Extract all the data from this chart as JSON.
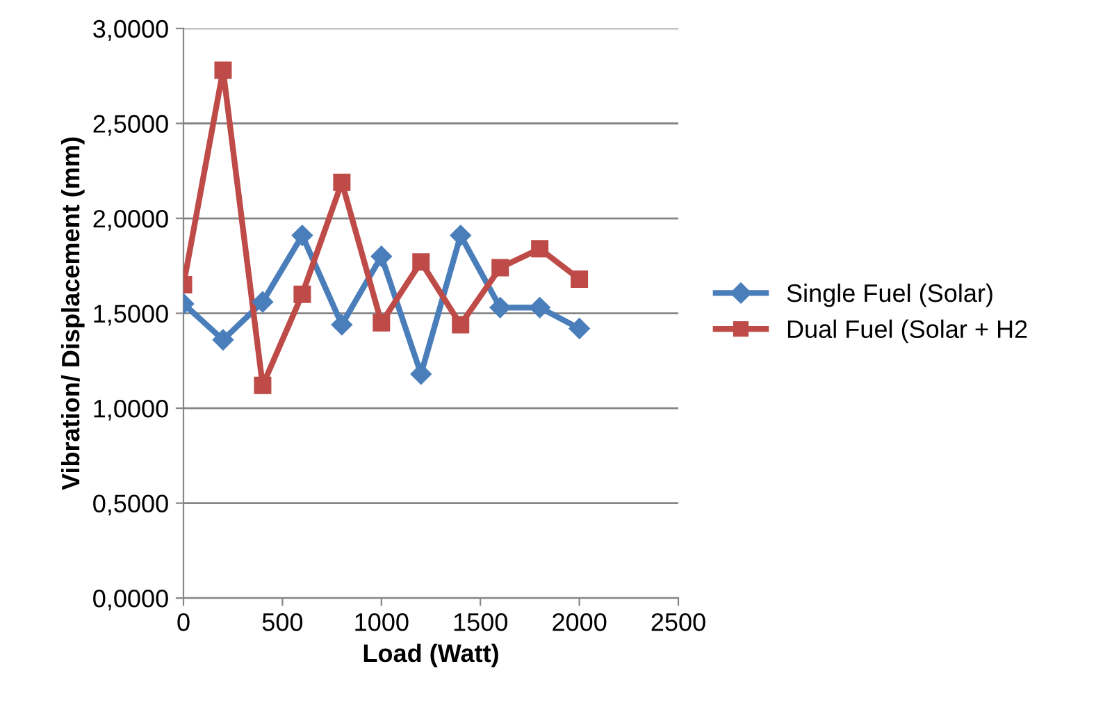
{
  "chart_data": {
    "type": "line",
    "xlabel": "Load (Watt)",
    "ylabel": "Vibration/ Displacement (mm)",
    "x": [
      0,
      200,
      400,
      600,
      800,
      1000,
      1200,
      1400,
      1600,
      1800,
      2000
    ],
    "series": [
      {
        "name": "Single Fuel (Solar)",
        "color": "#4a7ebb",
        "marker": "diamond",
        "values": [
          1.55,
          1.36,
          1.56,
          1.91,
          1.44,
          1.8,
          1.18,
          1.91,
          1.53,
          1.53,
          1.42
        ]
      },
      {
        "name": "Dual Fuel (Solar + H2",
        "color": "#be4b48",
        "marker": "square",
        "values": [
          1.65,
          2.78,
          1.12,
          1.6,
          2.19,
          1.45,
          1.77,
          1.44,
          1.74,
          1.84,
          1.68
        ]
      }
    ],
    "xlim": [
      0,
      2500
    ],
    "xticks": [
      0,
      500,
      1000,
      1500,
      2000,
      2500
    ],
    "ylim": [
      0,
      3
    ],
    "yticks": [
      {
        "value": 0,
        "label": "0,0000"
      },
      {
        "value": 0.5,
        "label": "0,5000"
      },
      {
        "value": 1,
        "label": "1,0000"
      },
      {
        "value": 1.5,
        "label": "1,5000"
      },
      {
        "value": 2,
        "label": "2,0000"
      },
      {
        "value": 2.5,
        "label": "2,5000"
      },
      {
        "value": 3,
        "label": "3,0000"
      }
    ],
    "grid": "y",
    "legend": "right",
    "line_style": "solid"
  }
}
